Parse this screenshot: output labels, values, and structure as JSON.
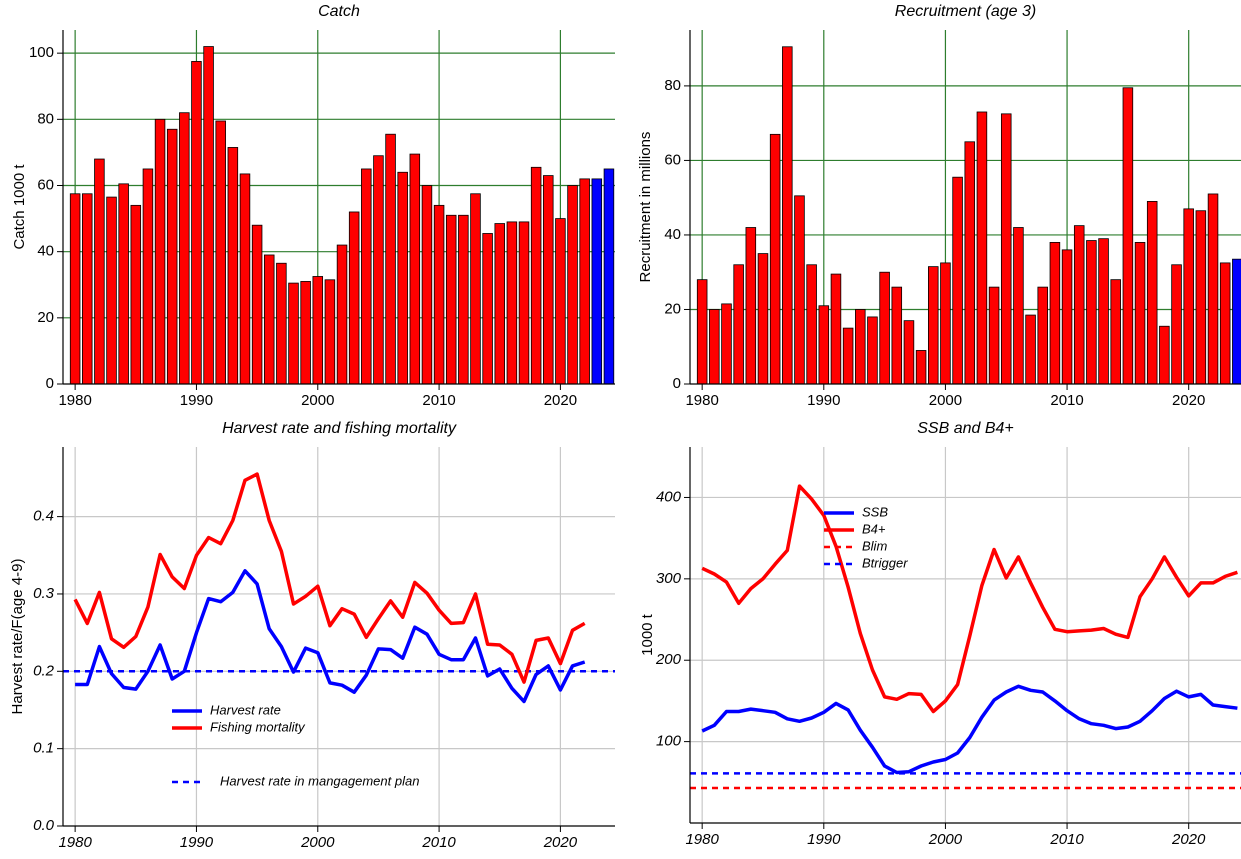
{
  "chart_data": [
    {
      "type": "bar",
      "title": "Catch",
      "y_label": "Catch 1000 t",
      "x": [
        1980,
        1981,
        1982,
        1983,
        1984,
        1985,
        1986,
        1987,
        1988,
        1989,
        1990,
        1991,
        1992,
        1993,
        1994,
        1995,
        1996,
        1997,
        1998,
        1999,
        2000,
        2001,
        2002,
        2003,
        2004,
        2005,
        2006,
        2007,
        2008,
        2009,
        2010,
        2011,
        2012,
        2013,
        2014,
        2015,
        2016,
        2017,
        2018,
        2019,
        2020,
        2021,
        2022,
        2023,
        2024
      ],
      "values": [
        57.5,
        57.5,
        68,
        56.5,
        60.5,
        54,
        65,
        80,
        77,
        82,
        97.5,
        102,
        79.5,
        71.5,
        63.5,
        48,
        39,
        36.5,
        30.5,
        31,
        32.5,
        31.5,
        42,
        52,
        65,
        69,
        75.5,
        64,
        69.5,
        60,
        54,
        51,
        51,
        57.5,
        45.5,
        48.5,
        49,
        49,
        65.5,
        63,
        50,
        60,
        62,
        62,
        65
      ],
      "color": "#ff0000",
      "projection_color": "#0000ff",
      "projection_from": 2023,
      "xlim": [
        1979,
        2024.5
      ],
      "xticks": [
        1980,
        1990,
        2000,
        2010,
        2020
      ],
      "ylim": [
        0,
        107
      ],
      "yticks": [
        0,
        20,
        40,
        60,
        80,
        100
      ],
      "grid": true,
      "grid_color": "#2e7d2e",
      "italic_ticks": false
    },
    {
      "type": "bar",
      "title": "Recruitment (age 3)",
      "y_label": "Recruitment in millions",
      "x": [
        1980,
        1981,
        1982,
        1983,
        1984,
        1985,
        1986,
        1987,
        1988,
        1989,
        1990,
        1991,
        1992,
        1993,
        1994,
        1995,
        1996,
        1997,
        1998,
        1999,
        2000,
        2001,
        2002,
        2003,
        2004,
        2005,
        2006,
        2007,
        2008,
        2009,
        2010,
        2011,
        2012,
        2013,
        2014,
        2015,
        2016,
        2017,
        2018,
        2019,
        2020,
        2021,
        2022,
        2023,
        2024
      ],
      "values": [
        28,
        20,
        21.5,
        32,
        42,
        35,
        67,
        90.5,
        50.5,
        32,
        21,
        29.5,
        15,
        20,
        18,
        30,
        26,
        17,
        9,
        31.5,
        32.5,
        55.5,
        65,
        73,
        26,
        72.5,
        42,
        18.5,
        26,
        38,
        36,
        42.5,
        38.5,
        39,
        28,
        79.5,
        38,
        49,
        15.5,
        32,
        47,
        46.5,
        51,
        32.5,
        33.5
      ],
      "color": "#ff0000",
      "projection_color": "#0000ff",
      "projection_from": 2024,
      "xlim": [
        1979,
        2024.3
      ],
      "xticks": [
        1980,
        1990,
        2000,
        2010,
        2020
      ],
      "ylim": [
        0,
        95
      ],
      "yticks": [
        0,
        20,
        40,
        60,
        80
      ],
      "grid": true,
      "grid_color": "#2e7d2e",
      "italic_ticks": false
    },
    {
      "type": "line",
      "title": "Harvest rate and fishing mortality",
      "y_label": "Harvest rate/F(age 4-9)",
      "x": [
        1980,
        1981,
        1982,
        1983,
        1984,
        1985,
        1986,
        1987,
        1988,
        1989,
        1990,
        1991,
        1992,
        1993,
        1994,
        1995,
        1996,
        1997,
        1998,
        1999,
        2000,
        2001,
        2002,
        2003,
        2004,
        2005,
        2006,
        2007,
        2008,
        2009,
        2010,
        2011,
        2012,
        2013,
        2014,
        2015,
        2016,
        2017,
        2018,
        2019,
        2020,
        2021,
        2022
      ],
      "series": [
        {
          "name": "Harvest rate",
          "color": "#0000ff",
          "values": [
            0.183,
            0.183,
            0.232,
            0.197,
            0.179,
            0.177,
            0.2,
            0.234,
            0.19,
            0.2,
            0.25,
            0.294,
            0.29,
            0.302,
            0.33,
            0.313,
            0.255,
            0.232,
            0.199,
            0.23,
            0.224,
            0.185,
            0.182,
            0.173,
            0.195,
            0.229,
            0.228,
            0.217,
            0.257,
            0.248,
            0.222,
            0.215,
            0.215,
            0.243,
            0.194,
            0.203,
            0.178,
            0.161,
            0.196,
            0.207,
            0.176,
            0.207,
            0.212
          ]
        },
        {
          "name": "Fishing mortality",
          "color": "#ff0000",
          "values": [
            0.293,
            0.262,
            0.302,
            0.242,
            0.231,
            0.245,
            0.283,
            0.351,
            0.322,
            0.307,
            0.35,
            0.373,
            0.365,
            0.395,
            0.447,
            0.455,
            0.395,
            0.355,
            0.287,
            0.297,
            0.31,
            0.259,
            0.281,
            0.274,
            0.244,
            0.268,
            0.291,
            0.27,
            0.315,
            0.301,
            0.279,
            0.262,
            0.263,
            0.3,
            0.235,
            0.234,
            0.222,
            0.186,
            0.24,
            0.243,
            0.21,
            0.253,
            0.262
          ]
        }
      ],
      "reference_lines": [
        {
          "name": "Harvest rate in mangagement plan",
          "value": 0.2,
          "color": "#0000ff"
        }
      ],
      "xlim": [
        1979,
        2024.5
      ],
      "xticks": [
        1980,
        1990,
        2000,
        2010,
        2020
      ],
      "ylim": [
        0,
        0.49
      ],
      "yticks": [
        {
          "value": 0,
          "label": "0.0"
        },
        0.1,
        0.2,
        0.3,
        0.4
      ],
      "grid": true,
      "grid_color": "#c8c8c8",
      "italic_ticks": true
    },
    {
      "type": "line",
      "title": "SSB and  B4+",
      "y_label": "1000 t",
      "x": [
        1980,
        1981,
        1982,
        1983,
        1984,
        1985,
        1986,
        1987,
        1988,
        1989,
        1990,
        1991,
        1992,
        1993,
        1994,
        1995,
        1996,
        1997,
        1998,
        1999,
        2000,
        2001,
        2002,
        2003,
        2004,
        2005,
        2006,
        2007,
        2008,
        2009,
        2010,
        2011,
        2012,
        2013,
        2014,
        2015,
        2016,
        2017,
        2018,
        2019,
        2020,
        2021,
        2022,
        2023,
        2024
      ],
      "series": [
        {
          "name": "SSB",
          "color": "#0000ff",
          "values": [
            113,
            120,
            137,
            137,
            140,
            138,
            136,
            128,
            125,
            129,
            136,
            147,
            139,
            114,
            93,
            70,
            62,
            63,
            70,
            75,
            78,
            86,
            105,
            130,
            151,
            161,
            168,
            163,
            161,
            150,
            138,
            128,
            122,
            120,
            116,
            118,
            125,
            138,
            153,
            162,
            155,
            158,
            145,
            143,
            141
          ]
        },
        {
          "name": "B4+",
          "color": "#ff0000",
          "values": [
            313,
            306,
            296,
            270,
            288,
            300,
            318,
            335,
            414,
            398,
            378,
            340,
            290,
            233,
            188,
            155,
            152,
            159,
            158,
            137,
            150,
            170,
            230,
            292,
            336,
            301,
            327,
            295,
            265,
            238,
            235,
            236,
            237,
            239,
            232,
            228,
            278,
            300,
            327,
            302,
            279,
            295,
            295,
            303,
            308
          ]
        }
      ],
      "reference_lines": [
        {
          "name": "Blim",
          "value": 43,
          "color": "#ff0000"
        },
        {
          "name": "Btrigger",
          "value": 61,
          "color": "#0000ff"
        }
      ],
      "xlim": [
        1979,
        2024.3
      ],
      "xticks": [
        1980,
        1990,
        2000,
        2010,
        2020
      ],
      "ylim": [
        0,
        462
      ],
      "yticks": [
        100,
        200,
        300,
        400
      ],
      "grid": true,
      "grid_color": "#c8c8c8",
      "italic_ticks": true
    }
  ]
}
